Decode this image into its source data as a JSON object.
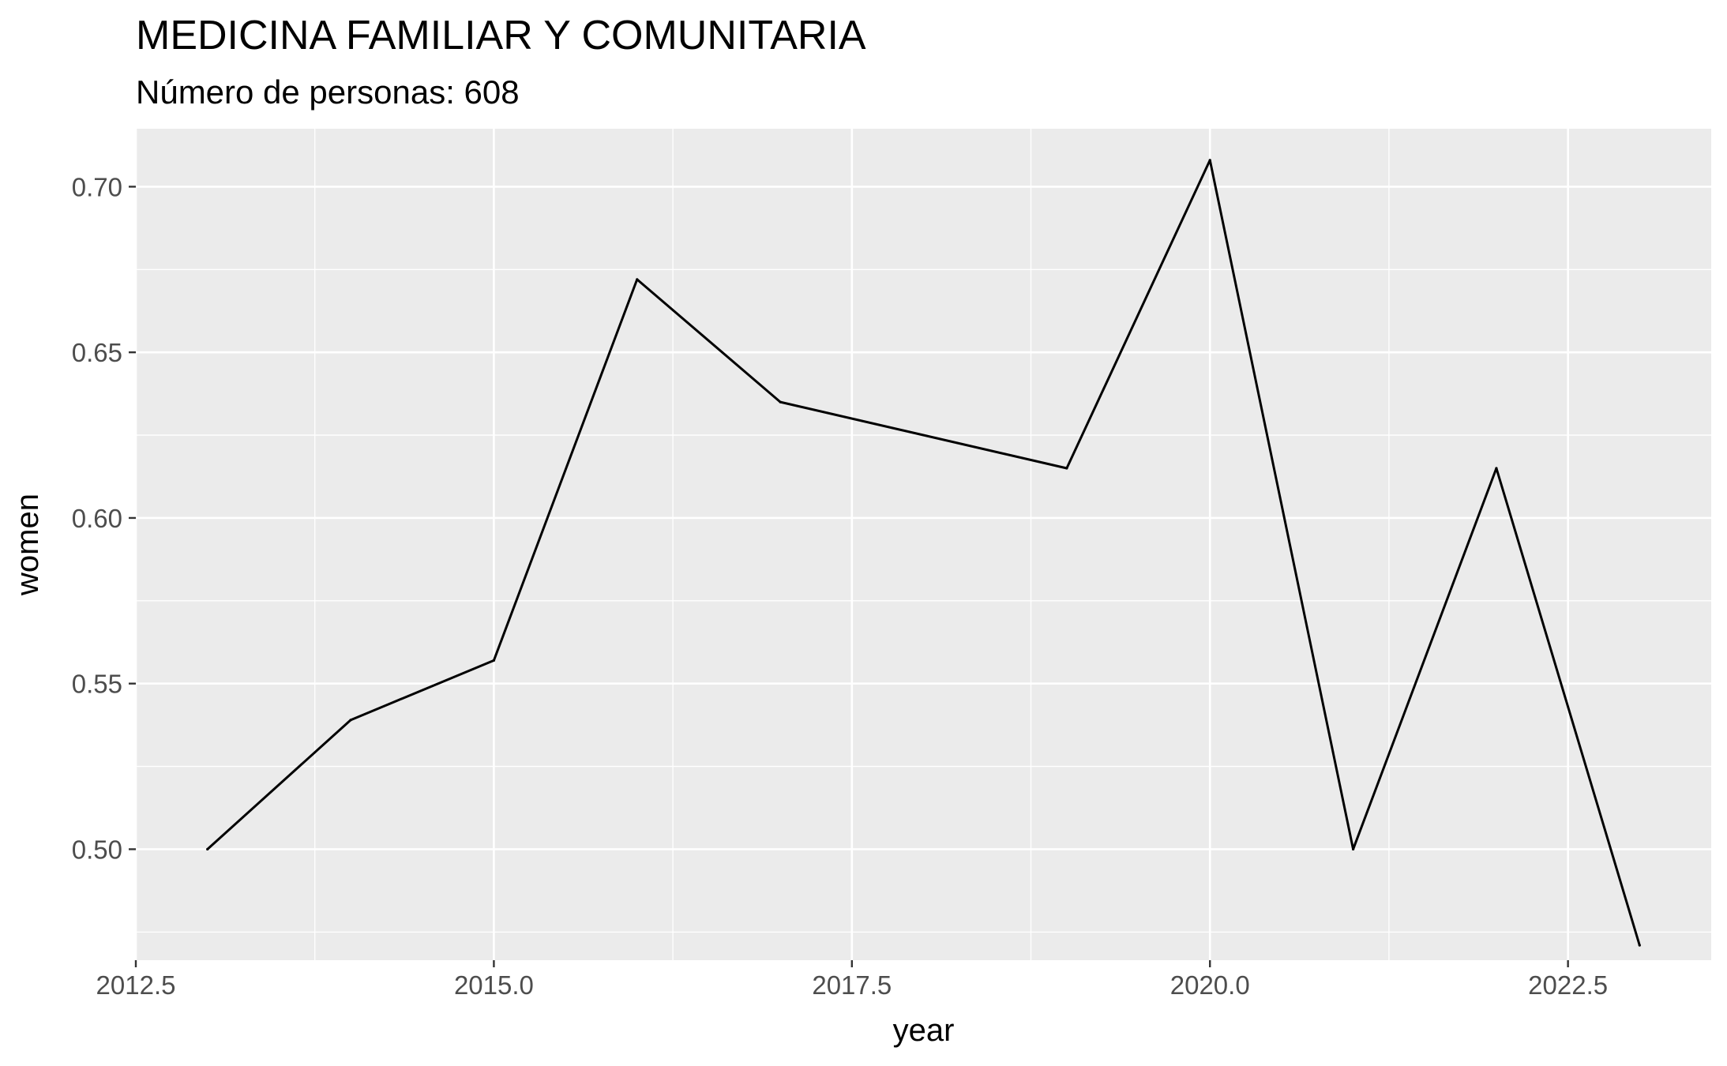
{
  "chart_data": {
    "type": "line",
    "title": "MEDICINA FAMILIAR Y COMUNITARIA",
    "subtitle": "Número de personas: 608",
    "xlabel": "year",
    "ylabel": "women",
    "x": [
      2013,
      2014,
      2015,
      2016,
      2017,
      2019,
      2020,
      2021,
      2022,
      2023
    ],
    "series": [
      {
        "values": [
          0.5,
          0.539,
          0.557,
          0.672,
          0.635,
          0.615,
          0.708,
          0.5,
          0.615,
          0.471
        ]
      }
    ],
    "xlim": [
      2012.5,
      2023.5
    ],
    "ylim": [
      0.4665,
      0.7175
    ],
    "x_ticks": [
      2012.5,
      2015.0,
      2017.5,
      2020.0,
      2022.5
    ],
    "x_tick_labels": [
      "2012.5",
      "2015.0",
      "2017.5",
      "2020.0",
      "2022.5"
    ],
    "y_ticks": [
      0.5,
      0.55,
      0.6,
      0.65,
      0.7
    ],
    "y_tick_labels": [
      "0.50",
      "0.55",
      "0.60",
      "0.65",
      "0.70"
    ],
    "grid": true,
    "legend": "none",
    "colors": {
      "panel": "#ebebeb",
      "grid": "#ffffff",
      "line": "#000000",
      "tick_text": "#4d4d4d",
      "tick_mark": "#333333"
    }
  }
}
